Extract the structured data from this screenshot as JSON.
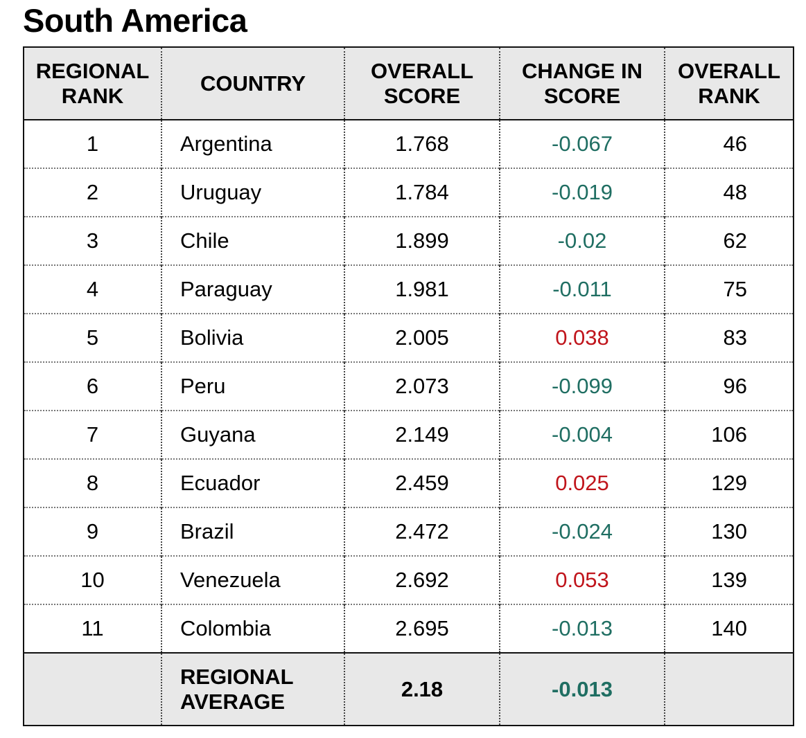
{
  "title": "South America",
  "table": {
    "headers": [
      "REGIONAL RANK",
      "COUNTRY",
      "OVERALL SCORE",
      "CHANGE IN SCORE",
      "OVERALL RANK"
    ],
    "rows": [
      [
        1,
        "Argentina",
        1.768,
        -0.067,
        46
      ],
      [
        2,
        "Uruguay",
        1.784,
        -0.019,
        48
      ],
      [
        3,
        "Chile",
        1.899,
        -0.02,
        62
      ],
      [
        4,
        "Paraguay",
        1.981,
        -0.011,
        75
      ],
      [
        5,
        "Bolivia",
        2.005,
        0.038,
        83
      ],
      [
        6,
        "Peru",
        2.073,
        -0.099,
        96
      ],
      [
        7,
        "Guyana",
        2.149,
        -0.004,
        106
      ],
      [
        8,
        "Ecuador",
        2.459,
        0.025,
        129
      ],
      [
        9,
        "Brazil",
        2.472,
        -0.024,
        130
      ],
      [
        10,
        "Venezuela",
        2.692,
        0.053,
        139
      ],
      [
        11,
        "Colombia",
        2.695,
        -0.013,
        140
      ]
    ],
    "footer": {
      "label": "REGIONAL AVERAGE",
      "score": 2.18,
      "change": -0.013
    },
    "negative_color": "#1f6e62",
    "positive_color": "#c0141b"
  }
}
